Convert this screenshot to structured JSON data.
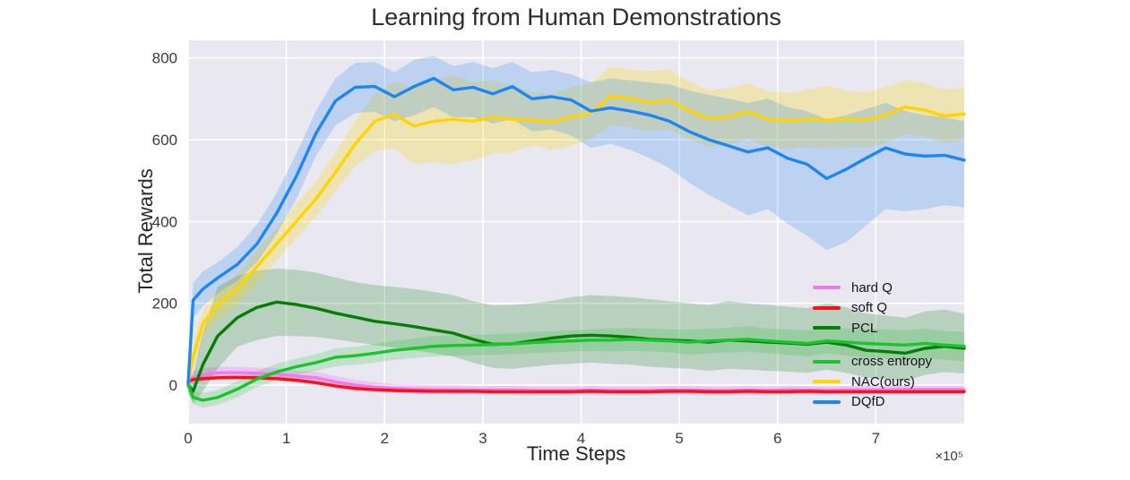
{
  "chart_data": {
    "type": "line",
    "title": "Learning from Human Demonstrations",
    "xlabel": "Time Steps",
    "ylabel": "Total Rewards",
    "x_offset_text": "×10⁵",
    "x_units": "values of x are in units of 1e5 time steps",
    "xlim": [
      0,
      7.9
    ],
    "ylim": [
      -94,
      843
    ],
    "x_ticks": [
      0,
      1,
      2,
      3,
      4,
      5,
      6,
      7
    ],
    "y_ticks": [
      0,
      200,
      400,
      600,
      800
    ],
    "grid": true,
    "plot_bg": "#e9e8f1",
    "grid_color": "#ffffff",
    "legend_position": "lower right",
    "x": [
      0,
      0.05,
      0.15,
      0.3,
      0.5,
      0.7,
      0.9,
      1.1,
      1.3,
      1.5,
      1.7,
      1.9,
      2.1,
      2.3,
      2.5,
      2.7,
      2.9,
      3.1,
      3.3,
      3.5,
      3.7,
      3.9,
      4.1,
      4.3,
      4.5,
      4.7,
      4.9,
      5.1,
      5.3,
      5.5,
      5.7,
      5.9,
      6.1,
      6.3,
      6.5,
      6.7,
      6.9,
      7.1,
      7.3,
      7.5,
      7.7,
      7.9
    ],
    "series": [
      {
        "name": "hard Q",
        "color": "#EE7AEE",
        "band_alpha": 0.3,
        "values": [
          8,
          18,
          26,
          30,
          31,
          29,
          27,
          22,
          18,
          8,
          0,
          -5,
          -8,
          -10,
          -11,
          -11,
          -12,
          -12,
          -12,
          -13,
          -13,
          -13,
          -12,
          -13,
          -13,
          -13,
          -12,
          -12,
          -13,
          -13,
          -12,
          -13,
          -12,
          -12,
          -13,
          -12,
          -12,
          -12,
          -11,
          -11,
          -11,
          -11
        ],
        "lo": [
          -6,
          2,
          10,
          15,
          17,
          15,
          13,
          8,
          3,
          -6,
          -13,
          -17,
          -19,
          -21,
          -22,
          -22,
          -22,
          -22,
          -22,
          -23,
          -23,
          -23,
          -22,
          -23,
          -23,
          -23,
          -22,
          -22,
          -23,
          -23,
          -22,
          -23,
          -22,
          -22,
          -23,
          -22,
          -22,
          -22,
          -21,
          -21,
          -21,
          -21
        ],
        "hi": [
          22,
          34,
          42,
          45,
          45,
          43,
          41,
          36,
          33,
          22,
          13,
          7,
          3,
          1,
          0,
          0,
          -2,
          -2,
          -2,
          -3,
          -3,
          -3,
          -2,
          -3,
          -3,
          -3,
          -2,
          -2,
          -3,
          -3,
          -2,
          -3,
          -2,
          -2,
          -3,
          -2,
          -2,
          -2,
          -1,
          -1,
          -1,
          -1
        ]
      },
      {
        "name": "soft Q",
        "color": "#F5121B",
        "band_alpha": 0.16,
        "values": [
          10,
          14,
          16,
          18,
          19,
          18,
          16,
          12,
          6,
          -2,
          -8,
          -11,
          -13,
          -14,
          -15,
          -15,
          -15,
          -16,
          -16,
          -16,
          -16,
          -16,
          -15,
          -16,
          -16,
          -16,
          -15,
          -15,
          -16,
          -16,
          -15,
          -16,
          -16,
          -15,
          -16,
          -16,
          -16,
          -16,
          -16,
          -16,
          -16,
          -16
        ],
        "lo": [
          4,
          8,
          10,
          12,
          13,
          12,
          10,
          6,
          0,
          -8,
          -14,
          -17,
          -19,
          -20,
          -21,
          -21,
          -21,
          -22,
          -22,
          -22,
          -22,
          -22,
          -21,
          -22,
          -22,
          -22,
          -21,
          -21,
          -22,
          -22,
          -21,
          -22,
          -22,
          -21,
          -22,
          -22,
          -22,
          -22,
          -22,
          -22,
          -22,
          -22
        ],
        "hi": [
          16,
          20,
          22,
          24,
          25,
          24,
          22,
          18,
          12,
          4,
          -2,
          -5,
          -7,
          -8,
          -9,
          -9,
          -9,
          -10,
          -10,
          -10,
          -10,
          -10,
          -9,
          -10,
          -10,
          -10,
          -9,
          -9,
          -10,
          -10,
          -9,
          -10,
          -10,
          -9,
          -10,
          -10,
          -10,
          -10,
          -10,
          -10,
          -10,
          -10
        ]
      },
      {
        "name": "PCL",
        "color": "#077D07",
        "band_alpha": 0.22,
        "values": [
          0,
          -15,
          50,
          120,
          165,
          190,
          203,
          197,
          188,
          176,
          166,
          156,
          150,
          143,
          135,
          127,
          112,
          100,
          101,
          108,
          115,
          120,
          122,
          120,
          117,
          112,
          110,
          108,
          105,
          110,
          108,
          105,
          103,
          100,
          105,
          98,
          85,
          82,
          78,
          90,
          95,
          90
        ],
        "lo": [
          -20,
          -45,
          -15,
          40,
          94,
          110,
          120,
          120,
          118,
          112,
          105,
          98,
          92,
          85,
          78,
          70,
          55,
          42,
          40,
          45,
          50,
          52,
          55,
          52,
          50,
          45,
          42,
          40,
          35,
          40,
          38,
          35,
          33,
          30,
          38,
          30,
          18,
          15,
          10,
          25,
          32,
          28
        ],
        "hi": [
          20,
          25,
          130,
          240,
          267,
          280,
          285,
          282,
          275,
          263,
          252,
          245,
          240,
          235,
          228,
          220,
          205,
          195,
          196,
          200,
          206,
          215,
          220,
          218,
          215,
          210,
          205,
          200,
          196,
          205,
          200,
          196,
          192,
          188,
          200,
          190,
          175,
          170,
          165,
          180,
          185,
          175
        ]
      },
      {
        "name": "cross entropy",
        "color": "#1BC42D",
        "band_alpha": 0.2,
        "values": [
          0,
          -30,
          -37,
          -30,
          -10,
          15,
          32,
          45,
          55,
          68,
          72,
          78,
          85,
          90,
          95,
          97,
          98,
          99,
          101,
          104,
          106,
          108,
          110,
          110,
          112,
          110,
          108,
          105,
          108,
          110,
          112,
          108,
          105,
          102,
          108,
          105,
          102,
          100,
          98,
          102,
          98,
          95
        ],
        "lo": [
          -12,
          -45,
          -55,
          -48,
          -30,
          -5,
          12,
          25,
          35,
          46,
          50,
          55,
          62,
          66,
          70,
          72,
          73,
          74,
          76,
          78,
          80,
          82,
          84,
          82,
          84,
          82,
          80,
          74,
          78,
          80,
          82,
          78,
          74,
          70,
          78,
          72,
          66,
          64,
          62,
          66,
          62,
          58
        ],
        "hi": [
          12,
          -15,
          -19,
          -12,
          10,
          35,
          52,
          65,
          75,
          90,
          94,
          101,
          108,
          114,
          120,
          122,
          123,
          124,
          126,
          130,
          132,
          134,
          136,
          138,
          140,
          138,
          136,
          136,
          138,
          140,
          144,
          138,
          136,
          134,
          138,
          138,
          138,
          136,
          134,
          138,
          132,
          130
        ]
      },
      {
        "name": "NAC(ours)",
        "color": "#FFD403",
        "band_alpha": 0.26,
        "values": [
          5,
          70,
          150,
          195,
          235,
          290,
          345,
          400,
          455,
          520,
          590,
          645,
          662,
          633,
          645,
          650,
          645,
          655,
          650,
          648,
          643,
          655,
          665,
          705,
          700,
          690,
          697,
          670,
          652,
          655,
          668,
          650,
          646,
          650,
          648,
          650,
          648,
          660,
          680,
          672,
          658,
          663
        ],
        "lo": [
          -8,
          40,
          115,
          160,
          198,
          250,
          305,
          358,
          412,
          472,
          535,
          572,
          578,
          540,
          545,
          540,
          550,
          565,
          570,
          585,
          575,
          585,
          600,
          635,
          630,
          620,
          625,
          600,
          582,
          588,
          602,
          582,
          578,
          582,
          578,
          582,
          580,
          592,
          614,
          607,
          592,
          597
        ],
        "hi": [
          18,
          100,
          185,
          230,
          272,
          330,
          385,
          442,
          498,
          568,
          645,
          712,
          742,
          726,
          745,
          758,
          740,
          745,
          732,
          718,
          712,
          728,
          738,
          778,
          772,
          768,
          772,
          742,
          722,
          725,
          738,
          718,
          715,
          722,
          732,
          720,
          716,
          728,
          746,
          738,
          722,
          728
        ]
      },
      {
        "name": "DQfD",
        "color": "#1E86F0",
        "band_alpha": 0.22,
        "values": [
          5,
          208,
          235,
          262,
          295,
          345,
          420,
          510,
          615,
          695,
          728,
          730,
          705,
          730,
          750,
          722,
          728,
          712,
          730,
          700,
          705,
          697,
          670,
          678,
          670,
          660,
          645,
          620,
          600,
          585,
          570,
          580,
          555,
          540,
          505,
          528,
          555,
          580,
          565,
          560,
          562,
          550
        ],
        "lo": [
          -10,
          165,
          192,
          225,
          255,
          300,
          370,
          455,
          560,
          635,
          665,
          668,
          645,
          660,
          680,
          655,
          655,
          640,
          650,
          620,
          625,
          610,
          580,
          590,
          575,
          555,
          530,
          495,
          465,
          440,
          415,
          430,
          395,
          365,
          330,
          350,
          390,
          430,
          425,
          430,
          440,
          435
        ],
        "hi": [
          20,
          250,
          278,
          300,
          338,
          392,
          470,
          565,
          670,
          750,
          788,
          790,
          765,
          795,
          805,
          780,
          790,
          775,
          790,
          765,
          770,
          760,
          740,
          750,
          745,
          740,
          735,
          720,
          710,
          700,
          690,
          700,
          680,
          670,
          650,
          660,
          675,
          690,
          670,
          660,
          655,
          645
        ]
      }
    ]
  }
}
